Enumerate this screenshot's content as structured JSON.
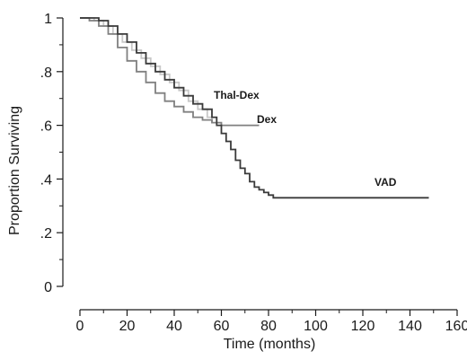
{
  "chart_data": {
    "type": "line",
    "xlabel": "Time (months)",
    "ylabel": "Proportion Surviving",
    "xlim": [
      0,
      160
    ],
    "ylim": [
      0,
      1
    ],
    "x_ticks": [
      0,
      20,
      40,
      60,
      80,
      100,
      120,
      140,
      160
    ],
    "y_ticks": [
      0,
      0.2,
      0.4,
      0.6,
      0.8,
      1
    ],
    "x_tick_labels": [
      "0",
      "20",
      "40",
      "60",
      "80",
      "100",
      "120",
      "140",
      "160"
    ],
    "y_tick_labels": [
      "0",
      ".2",
      ".4",
      ".6",
      ".8",
      "1"
    ],
    "grid": false,
    "series": [
      {
        "name": "Thal-Dex",
        "color": "#c8c8c8",
        "points": [
          [
            0,
            1
          ],
          [
            6,
            0.99
          ],
          [
            10,
            0.97
          ],
          [
            14,
            0.94
          ],
          [
            18,
            0.91
          ],
          [
            22,
            0.88
          ],
          [
            26,
            0.85
          ],
          [
            30,
            0.82
          ],
          [
            34,
            0.79
          ],
          [
            38,
            0.76
          ],
          [
            42,
            0.73
          ],
          [
            46,
            0.69
          ],
          [
            50,
            0.66
          ],
          [
            54,
            0.63
          ],
          [
            56,
            0.61
          ]
        ]
      },
      {
        "name": "Dex",
        "color": "#808080",
        "points": [
          [
            0,
            1
          ],
          [
            4,
            0.99
          ],
          [
            8,
            0.97
          ],
          [
            12,
            0.94
          ],
          [
            16,
            0.89
          ],
          [
            20,
            0.84
          ],
          [
            24,
            0.8
          ],
          [
            28,
            0.76
          ],
          [
            32,
            0.72
          ],
          [
            36,
            0.69
          ],
          [
            40,
            0.67
          ],
          [
            44,
            0.65
          ],
          [
            48,
            0.63
          ],
          [
            52,
            0.62
          ],
          [
            56,
            0.61
          ],
          [
            60,
            0.6
          ],
          [
            76,
            0.6
          ]
        ]
      },
      {
        "name": "VAD",
        "color": "#3a3a3a",
        "points": [
          [
            0,
            1
          ],
          [
            5,
            1
          ],
          [
            8,
            0.99
          ],
          [
            12,
            0.97
          ],
          [
            16,
            0.94
          ],
          [
            20,
            0.91
          ],
          [
            24,
            0.87
          ],
          [
            28,
            0.83
          ],
          [
            32,
            0.8
          ],
          [
            36,
            0.77
          ],
          [
            40,
            0.74
          ],
          [
            44,
            0.71
          ],
          [
            48,
            0.68
          ],
          [
            52,
            0.66
          ],
          [
            56,
            0.63
          ],
          [
            58,
            0.6
          ],
          [
            60,
            0.57
          ],
          [
            62,
            0.54
          ],
          [
            64,
            0.51
          ],
          [
            66,
            0.47
          ],
          [
            68,
            0.44
          ],
          [
            70,
            0.42
          ],
          [
            72,
            0.39
          ],
          [
            74,
            0.37
          ],
          [
            76,
            0.36
          ],
          [
            78,
            0.35
          ],
          [
            80,
            0.34
          ],
          [
            82,
            0.33
          ],
          [
            100,
            0.33
          ],
          [
            148,
            0.33
          ]
        ]
      }
    ]
  }
}
